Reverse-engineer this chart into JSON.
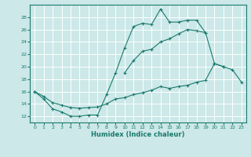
{
  "xlabel": "Humidex (Indice chaleur)",
  "xlim": [
    -0.5,
    23.5
  ],
  "ylim": [
    11,
    30
  ],
  "yticks": [
    12,
    14,
    16,
    18,
    20,
    22,
    24,
    26,
    28
  ],
  "xticks": [
    0,
    1,
    2,
    3,
    4,
    5,
    6,
    7,
    8,
    9,
    10,
    11,
    12,
    13,
    14,
    15,
    16,
    17,
    18,
    19,
    20,
    21,
    22,
    23
  ],
  "background_color": "#cce8e8",
  "grid_color": "#b0d4d4",
  "line_color": "#1a7a6e",
  "series1_y": [
    16.0,
    14.8,
    13.2,
    12.7,
    12.0,
    12.0,
    12.2,
    12.2,
    15.5,
    19.0,
    23.0,
    26.5,
    27.0,
    26.8,
    29.3,
    27.2,
    27.2,
    27.5,
    27.5,
    25.5,
    20.5,
    20.0,
    null,
    null
  ],
  "series2_y": [
    null,
    null,
    null,
    null,
    null,
    null,
    null,
    null,
    null,
    null,
    19.0,
    21.0,
    22.5,
    22.8,
    24.0,
    24.5,
    25.3,
    26.0,
    25.8,
    25.5,
    null,
    null,
    null,
    null
  ],
  "series3_y": [
    16.0,
    15.2,
    14.2,
    13.8,
    13.4,
    13.3,
    13.4,
    13.5,
    14.0,
    14.8,
    15.0,
    15.5,
    15.8,
    16.2,
    16.8,
    16.5,
    16.8,
    17.0,
    17.5,
    17.8,
    20.5,
    20.0,
    19.5,
    17.5
  ]
}
